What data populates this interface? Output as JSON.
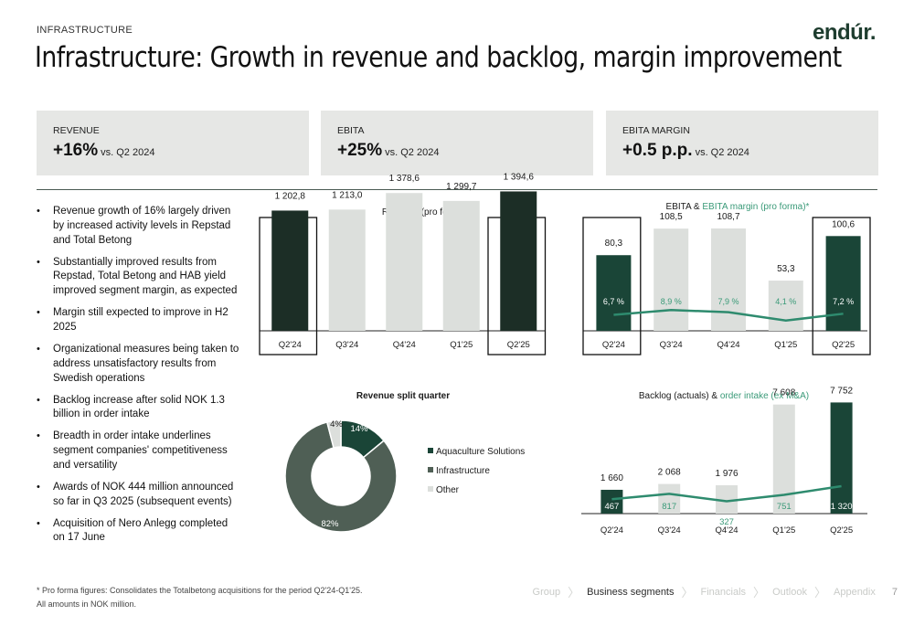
{
  "header": {
    "section": "INFRASTRUCTURE",
    "title": "Infrastructure: Growth in revenue and backlog, margin improvement",
    "logo": "endúr."
  },
  "kpis": [
    {
      "label": "REVENUE",
      "value": "+16%",
      "sub": "vs. Q2 2024"
    },
    {
      "label": "EBITA",
      "value": "+25%",
      "sub": "vs. Q2 2024"
    },
    {
      "label": "EBITA MARGIN",
      "value": "+0.5 p.p.",
      "sub": "vs. Q2 2024"
    }
  ],
  "bullets": [
    "Revenue growth of 16% largely driven by increased activity levels in Repstad and Total Betong",
    "Substantially improved results from Repstad, Total Betong and HAB yield improved segment margin, as expected",
    "Margin still expected to improve in H2 2025",
    "Organizational measures being taken to address unsatisfactory results from Swedish operations",
    "Backlog increase after solid NOK 1.3 billion in order intake",
    "Breadth in order intake underlines segment companies' competitiveness and versatility",
    "Awards of NOK 444 million announced so far in Q3 2025 (subsequent events)",
    "Acquisition of Nero Anlegg completed on 17 June"
  ],
  "bullet_marker": "•",
  "colors": {
    "dark_green": "#1a4537",
    "very_dark": "#1c2e26",
    "light_grey": "#dcdfdc",
    "line_green": "#2e8b6e",
    "donut_infra": "#4f5f55",
    "text_green": "#3a9a78"
  },
  "chart_data": [
    {
      "type": "bar",
      "title": "Revenue (pro forma)*",
      "categories": [
        "Q2'24",
        "Q3'24",
        "Q4'24",
        "Q1'25",
        "Q2'25"
      ],
      "values": [
        1202.8,
        1213.0,
        1378.6,
        1299.7,
        1394.6
      ],
      "value_labels": [
        "1 202,8",
        "1 213,0",
        "1 378,6",
        "1 299,7",
        "1 394,6"
      ],
      "highlighted": [
        0,
        4
      ],
      "ylim": [
        0,
        1600
      ]
    },
    {
      "type": "bar",
      "title_parts": [
        "EBITA",
        " & ",
        "EBITA margin (pro forma)*"
      ],
      "categories": [
        "Q2'24",
        "Q3'24",
        "Q4'24",
        "Q1'25",
        "Q2'25"
      ],
      "series": [
        {
          "values": [
            80.3,
            108.5,
            108.7,
            53.3,
            100.6
          ],
          "labels": [
            "80,3",
            "108,5",
            "108,7",
            "53,3",
            "100,6"
          ]
        },
        {
          "values": [
            6.7,
            8.9,
            7.9,
            4.1,
            7.2
          ],
          "labels": [
            "6,7 %",
            "8,9 %",
            "7,9 %",
            "4,1 %",
            "7,2 %"
          ]
        }
      ],
      "highlighted": [
        0,
        4
      ],
      "ylim": [
        0,
        130
      ]
    },
    {
      "type": "pie",
      "title": "Revenue split quarter",
      "categories": [
        "Aquaculture Solutions",
        "Infrastructure",
        "Other"
      ],
      "values": [
        14,
        82,
        4
      ],
      "value_labels": [
        "14%",
        "82%",
        "4%"
      ]
    },
    {
      "type": "bar",
      "title_parts": [
        "Backlog (actuals)",
        " & ",
        "order intake (ex M&A)"
      ],
      "categories": [
        "Q2'24",
        "Q3'24",
        "Q4'24",
        "Q1'25",
        "Q2'25"
      ],
      "series": [
        {
          "values": [
            1660,
            2068,
            1976,
            7608,
            7752
          ],
          "labels": [
            "1 660",
            "2 068",
            "1 976",
            "7 608",
            "7 752"
          ]
        },
        {
          "values": [
            467,
            817,
            327,
            751,
            1320
          ],
          "labels": [
            "467",
            "817",
            "327",
            "751",
            "1 320"
          ]
        }
      ],
      "highlighted": [
        0,
        4
      ],
      "ylim": [
        0,
        8500
      ]
    }
  ],
  "footnote": {
    "line1": "* Pro forma figures: Consolidates the Totalbetong acquisitions for the period Q2'24-Q1'25.",
    "line2": "All amounts in NOK million."
  },
  "nav": {
    "items": [
      "Group",
      "Business segments",
      "Financials",
      "Outlook",
      "Appendix"
    ],
    "active": 1,
    "separator": "〉",
    "page": "7"
  }
}
